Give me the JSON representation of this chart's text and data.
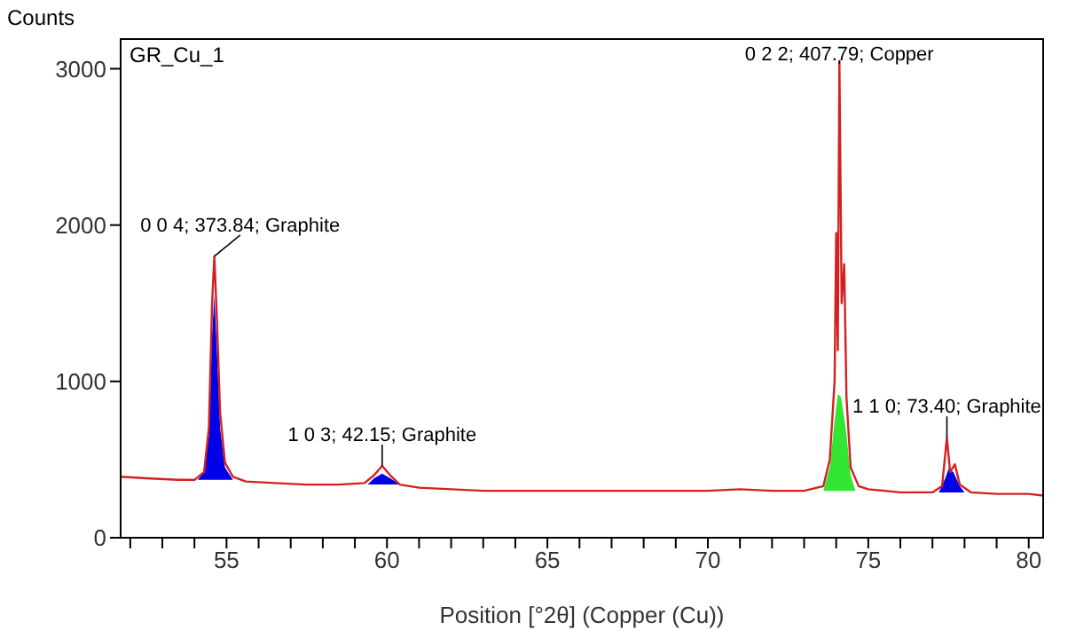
{
  "chart_data": {
    "type": "line",
    "title": "GR_Cu_1",
    "xlabel": "Position [°2θ] (Copper (Cu))",
    "ylabel": "Counts",
    "xlim": [
      51.7,
      80.45
    ],
    "ylim": [
      0,
      3190
    ],
    "xticks": [
      {
        "value": 52,
        "label": null
      },
      {
        "value": 53,
        "label": null
      },
      {
        "value": 54,
        "label": null
      },
      55,
      {
        "value": 56,
        "label": null
      },
      {
        "value": 57,
        "label": null
      },
      {
        "value": 58,
        "label": null
      },
      {
        "value": 59,
        "label": null
      },
      60,
      {
        "value": 61,
        "label": null
      },
      {
        "value": 62,
        "label": null
      },
      {
        "value": 63,
        "label": null
      },
      {
        "value": 64,
        "label": null
      },
      65,
      {
        "value": 66,
        "label": null
      },
      {
        "value": 67,
        "label": null
      },
      {
        "value": 68,
        "label": null
      },
      {
        "value": 69,
        "label": null
      },
      70,
      {
        "value": 71,
        "label": null
      },
      {
        "value": 72,
        "label": null
      },
      {
        "value": 73,
        "label": null
      },
      {
        "value": 74,
        "label": null
      },
      75,
      {
        "value": 76,
        "label": null
      },
      {
        "value": 77,
        "label": null
      },
      {
        "value": 78,
        "label": null
      },
      {
        "value": 79,
        "label": null
      },
      80
    ],
    "yticks": [
      0,
      1000,
      2000,
      3000
    ],
    "grid": false,
    "marker": "none",
    "line_style": "solid",
    "series": [
      {
        "type": "area",
        "color": "#0000e6",
        "x": [
          54.1,
          54.3,
          54.45,
          54.55,
          54.62,
          54.7,
          54.8,
          54.95,
          55.2
        ],
        "values": [
          370,
          420,
          650,
          1300,
          1550,
          1200,
          700,
          450,
          370
        ]
      },
      {
        "type": "area",
        "color": "#0000e6",
        "x": [
          59.4,
          59.6,
          59.85,
          60.1,
          60.4
        ],
        "values": [
          340,
          380,
          410,
          380,
          340
        ]
      },
      {
        "type": "area",
        "color": "#33e633",
        "x": [
          73.6,
          73.8,
          73.95,
          74.05,
          74.15,
          74.3,
          74.45,
          74.6
        ],
        "values": [
          300,
          450,
          750,
          920,
          900,
          700,
          400,
          300
        ]
      },
      {
        "type": "area",
        "color": "#0000e6",
        "x": [
          77.2,
          77.4,
          77.5,
          77.65,
          77.85,
          78.0
        ],
        "values": [
          290,
          380,
          440,
          420,
          330,
          290
        ]
      },
      {
        "type": "line",
        "color": "#d42020",
        "x": [
          51.7,
          52.5,
          53.5,
          54.0,
          54.3,
          54.45,
          54.55,
          54.62,
          54.7,
          54.8,
          54.95,
          55.2,
          55.6,
          56.5,
          57.5,
          58.5,
          59.3,
          59.6,
          59.85,
          60.1,
          60.4,
          61,
          62,
          63,
          64,
          65,
          66,
          67,
          68,
          69,
          70,
          71,
          72,
          73,
          73.6,
          73.8,
          73.95,
          74.0,
          74.05,
          74.1,
          74.17,
          74.25,
          74.32,
          74.45,
          74.7,
          75,
          76,
          77,
          77.3,
          77.45,
          77.55,
          77.7,
          77.85,
          78.2,
          79,
          80,
          80.45
        ],
        "values": [
          390,
          380,
          370,
          370,
          420,
          700,
          1500,
          1800,
          1400,
          800,
          480,
          390,
          360,
          350,
          340,
          340,
          350,
          400,
          460,
          400,
          340,
          320,
          310,
          300,
          300,
          300,
          300,
          300,
          300,
          300,
          300,
          310,
          300,
          300,
          330,
          500,
          1000,
          1950,
          1200,
          3050,
          1500,
          1750,
          900,
          450,
          330,
          310,
          290,
          290,
          330,
          640,
          420,
          470,
          340,
          290,
          280,
          280,
          270
        ]
      }
    ],
    "annotations": [
      {
        "text": "0 0 4; 373.84; Graphite",
        "x": 54.62,
        "y": 1800
      },
      {
        "text": "1 0 3; 42.15; Graphite",
        "x": 59.85,
        "y": 460
      },
      {
        "text": "0 2 2; 407.79; Copper",
        "x": 74.1,
        "y": 3050
      },
      {
        "text": "1 1 0; 73.40; Graphite",
        "x": 77.45,
        "y": 640
      }
    ]
  }
}
